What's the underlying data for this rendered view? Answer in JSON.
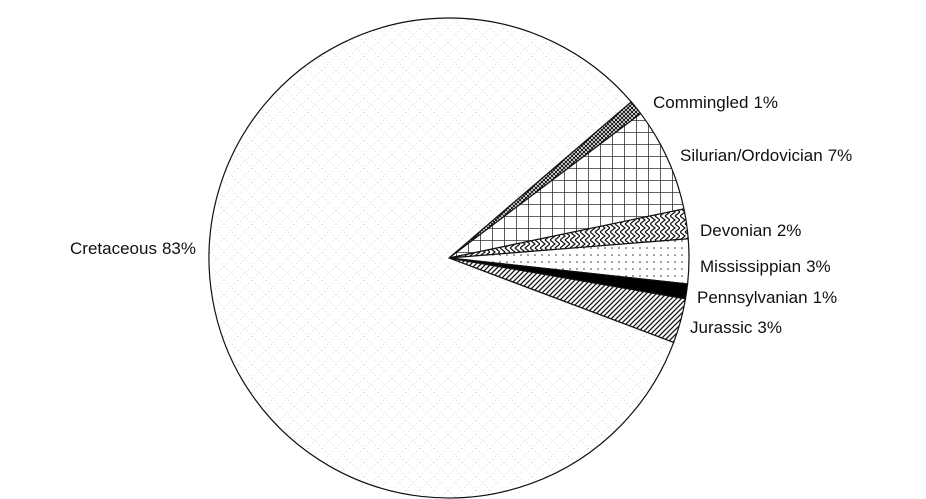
{
  "chart_data": {
    "type": "pie",
    "categories": [
      "Commingled",
      "Silurian/Ordovician",
      "Devonian",
      "Mississippian",
      "Pennsylvanian",
      "Jurassic",
      "Cretaceous"
    ],
    "values": [
      1,
      7,
      2,
      3,
      1,
      3,
      83
    ],
    "value_labels": [
      "1%",
      "7%",
      "2%",
      "3%",
      "1%",
      "3%",
      "83%"
    ]
  }
}
